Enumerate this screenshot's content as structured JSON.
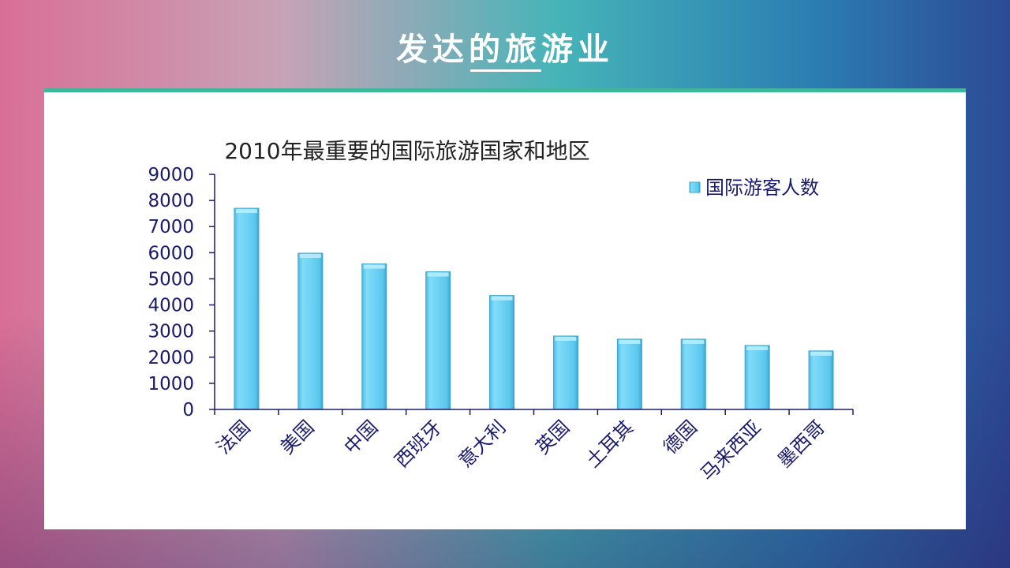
{
  "slide": {
    "title": "发达的旅游业"
  },
  "chart_data": {
    "type": "bar",
    "title": "2010年最重要的国际旅游国家和地区",
    "categories": [
      "法国",
      "美国",
      "中国",
      "西班牙",
      "意大利",
      "英国",
      "土耳其",
      "德国",
      "马来西亚",
      "墨西哥"
    ],
    "series": [
      {
        "name": "国际游客人数",
        "values": [
          7700,
          5980,
          5570,
          5270,
          4360,
          2810,
          2690,
          2690,
          2450,
          2240
        ]
      }
    ],
    "ylim": [
      0,
      9000
    ],
    "yticks": [
      "0",
      "1000",
      "2000",
      "3000",
      "4000",
      "5000",
      "6000",
      "7000",
      "8000",
      "9000"
    ],
    "legend_position": "top-right",
    "colors": {
      "bar": "#6fd3f5",
      "bar_edge": "#3aa7d2",
      "axis": "#1b1b6e"
    },
    "grid": false
  }
}
